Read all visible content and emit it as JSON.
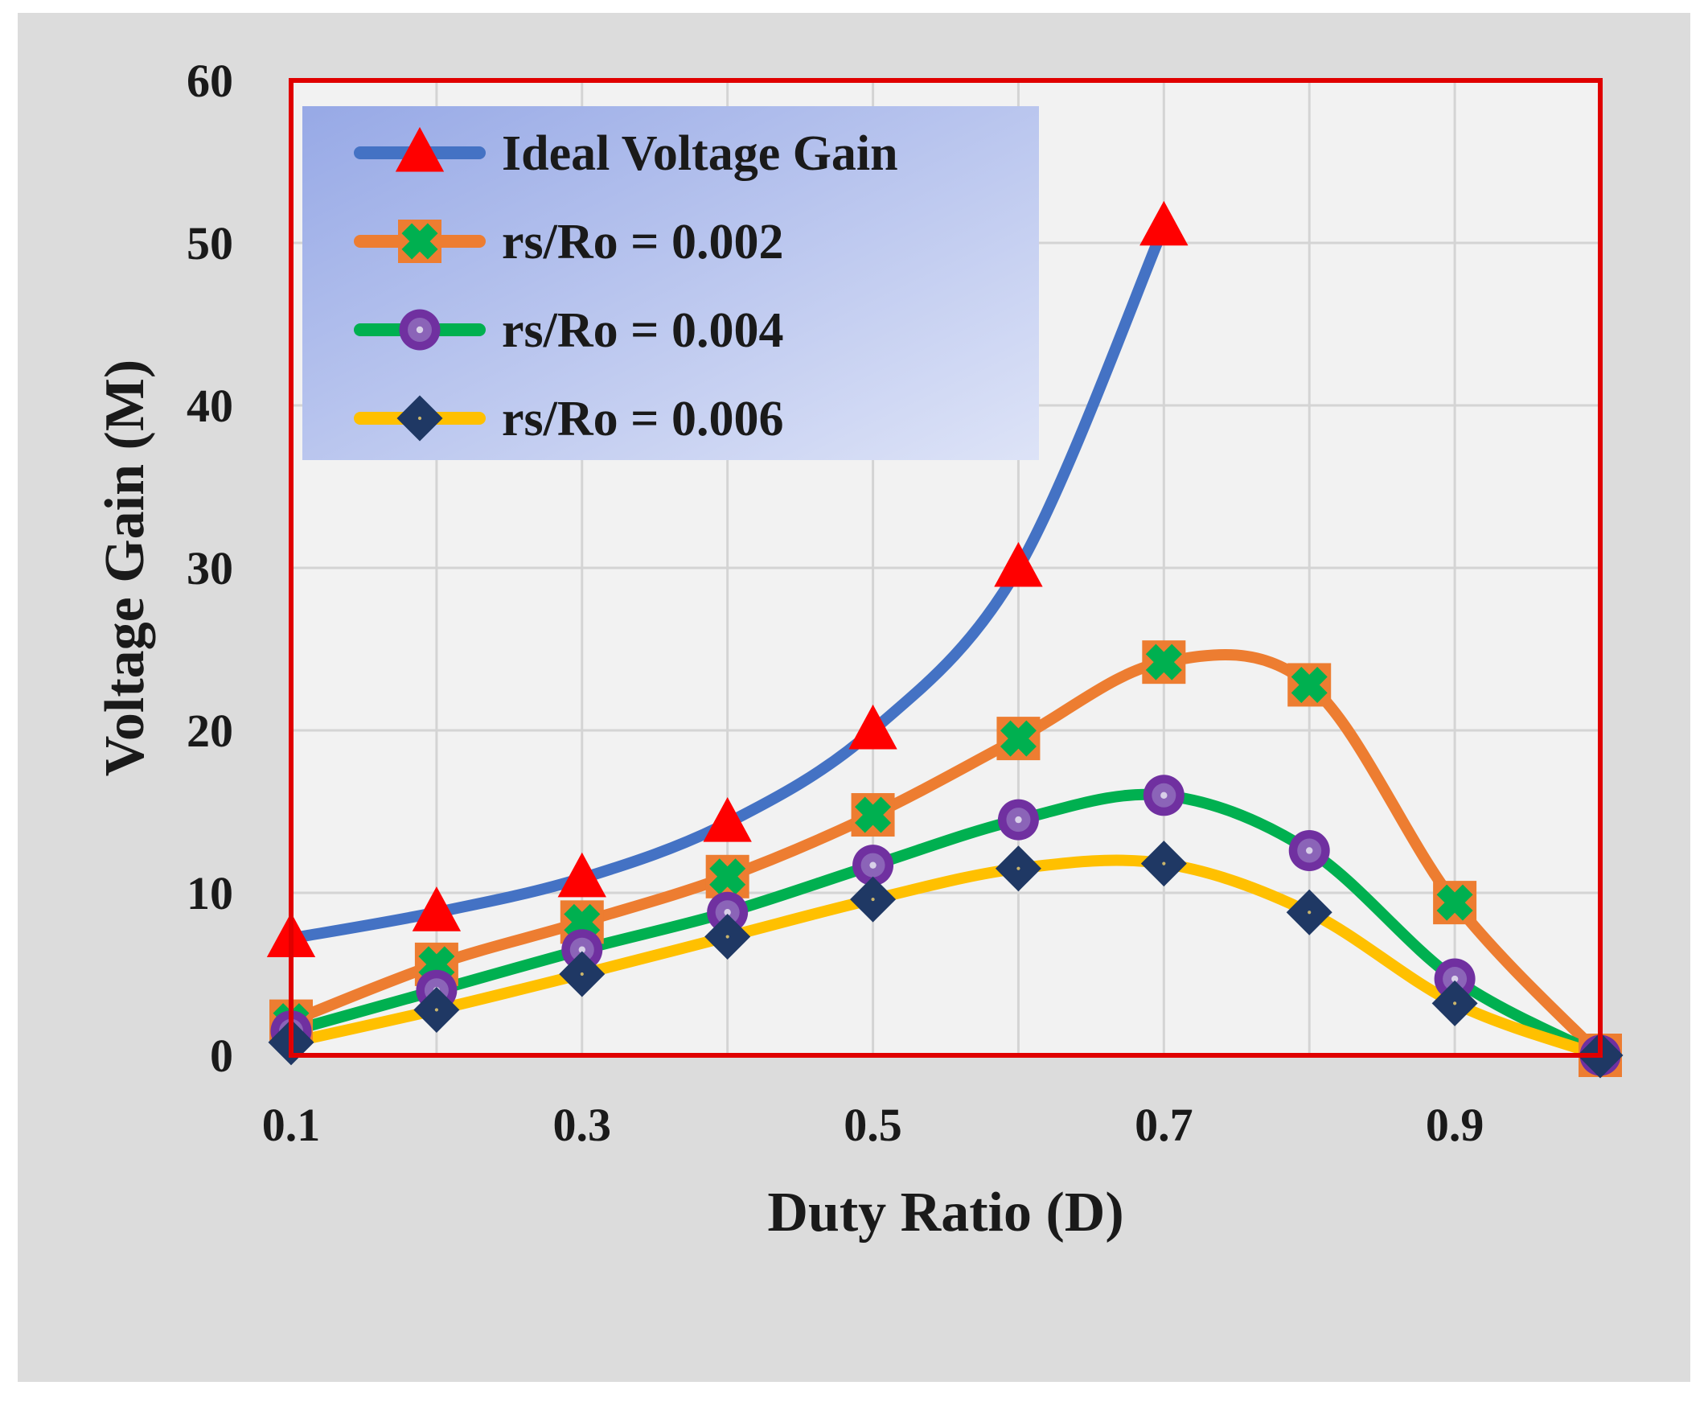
{
  "colors": {
    "page_bg": "#ffffff",
    "outer_bg": "#dcdcdc",
    "plot_bg": "#f2f2f2",
    "plot_border": "#e00000",
    "grid": "#d4d4d4",
    "legend_bg_start": "#97a9e6",
    "legend_bg_end": "#dde3f7"
  },
  "chart_data": {
    "type": "line",
    "xlabel": "Duty Ratio (D)",
    "ylabel": "Voltage Gain (M)",
    "xlim": [
      0.1,
      1.0
    ],
    "ylim": [
      0,
      60
    ],
    "xticks": [
      {
        "value": 0.1,
        "label": "0.1"
      },
      {
        "value": 0.3,
        "label": "0.3"
      },
      {
        "value": 0.5,
        "label": "0.5"
      },
      {
        "value": 0.7,
        "label": "0.7"
      },
      {
        "value": 0.9,
        "label": "0.9"
      }
    ],
    "xgrid": [
      0.1,
      0.2,
      0.3,
      0.4,
      0.5,
      0.6,
      0.7,
      0.8,
      0.9,
      1.0
    ],
    "yticks": [
      {
        "value": 0,
        "label": "0"
      },
      {
        "value": 10,
        "label": "10"
      },
      {
        "value": 20,
        "label": "20"
      },
      {
        "value": 30,
        "label": "30"
      },
      {
        "value": 40,
        "label": "40"
      },
      {
        "value": 50,
        "label": "50"
      },
      {
        "value": 60,
        "label": "60"
      }
    ],
    "legend_position": "top-left",
    "series": [
      {
        "name": "Ideal Voltage Gain",
        "line_color": "#4472c4",
        "marker": "triangle",
        "marker_color": "#ff0000",
        "x": [
          0.1,
          0.2,
          0.3,
          0.4,
          0.5,
          0.6,
          0.7
        ],
        "values": [
          7.2,
          8.8,
          10.9,
          14.3,
          20.0,
          30.0,
          51.0
        ]
      },
      {
        "name": "rs/Ro = 0.002",
        "line_color": "#ed7d31",
        "marker": "x",
        "marker_color": "#00b050",
        "x": [
          0.1,
          0.2,
          0.3,
          0.4,
          0.5,
          0.6,
          0.7,
          0.8,
          0.9,
          1.0
        ],
        "values": [
          2.1,
          5.6,
          8.2,
          11.0,
          14.8,
          19.5,
          24.2,
          22.8,
          9.4,
          0
        ]
      },
      {
        "name": "rs/Ro = 0.004",
        "line_color": "#00b050",
        "marker": "circle",
        "marker_color": "#7030a0",
        "x": [
          0.1,
          0.2,
          0.3,
          0.4,
          0.5,
          0.6,
          0.7,
          0.8,
          0.9,
          1.0
        ],
        "values": [
          1.5,
          4.0,
          6.5,
          8.8,
          11.7,
          14.5,
          16.0,
          12.6,
          4.7,
          0
        ]
      },
      {
        "name": "rs/Ro = 0.006",
        "line_color": "#ffc000",
        "marker": "diamond",
        "marker_color": "#1f3864",
        "x": [
          0.1,
          0.2,
          0.3,
          0.4,
          0.5,
          0.6,
          0.7,
          0.8,
          0.9,
          1.0
        ],
        "values": [
          0.8,
          2.8,
          5.0,
          7.3,
          9.6,
          11.5,
          11.8,
          8.8,
          3.2,
          0
        ]
      }
    ]
  }
}
